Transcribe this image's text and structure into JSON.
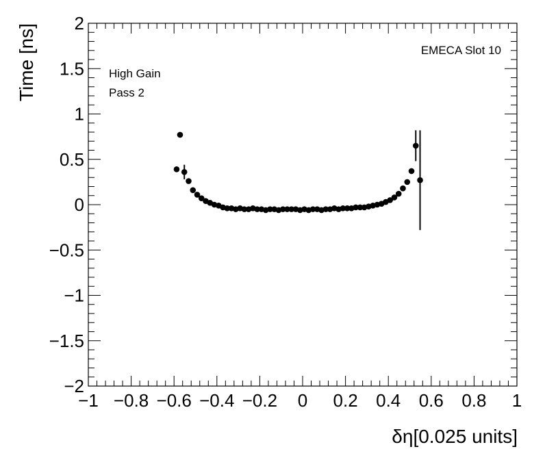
{
  "chart_data": {
    "type": "scatter",
    "title": "",
    "xlabel": "δη[0.025 units]",
    "ylabel": "Time [ns]",
    "xlim": [
      -1,
      1
    ],
    "ylim": [
      -2,
      2
    ],
    "x_ticks": [
      "−1",
      "−0.8",
      "−0.6",
      "−0.4",
      "−0.2",
      "0",
      "0.2",
      "0.4",
      "0.6",
      "0.8",
      "1"
    ],
    "y_ticks": [
      "2",
      "1.5",
      "1",
      "0.5",
      "0",
      "−0.5",
      "−1",
      "−1.5",
      "−2"
    ],
    "grid": false,
    "annotations": {
      "slot": "EMECA Slot 10",
      "gain": "High Gain",
      "pass": "Pass 2"
    },
    "marker_color": "#000000",
    "series": [
      {
        "name": "",
        "points": [
          {
            "x": -0.588,
            "y": 0.39,
            "err": 0.01
          },
          {
            "x": -0.572,
            "y": 0.77,
            "err": 0.01
          },
          {
            "x": -0.552,
            "y": 0.36,
            "err": 0.08
          },
          {
            "x": -0.532,
            "y": 0.26,
            "err": 0.02
          },
          {
            "x": -0.512,
            "y": 0.16,
            "err": 0.01
          },
          {
            "x": -0.492,
            "y": 0.11,
            "err": 0.01
          },
          {
            "x": -0.472,
            "y": 0.07,
            "err": 0.01
          },
          {
            "x": -0.452,
            "y": 0.04,
            "err": 0.01
          },
          {
            "x": -0.432,
            "y": 0.02,
            "err": 0.01
          },
          {
            "x": -0.412,
            "y": 0.0,
            "err": 0.01
          },
          {
            "x": -0.392,
            "y": -0.01,
            "err": 0.01
          },
          {
            "x": -0.372,
            "y": -0.03,
            "err": 0.01
          },
          {
            "x": -0.352,
            "y": -0.04,
            "err": 0.01
          },
          {
            "x": -0.332,
            "y": -0.04,
            "err": 0.01
          },
          {
            "x": -0.312,
            "y": -0.05,
            "err": 0.01
          },
          {
            "x": -0.292,
            "y": -0.04,
            "err": 0.01
          },
          {
            "x": -0.272,
            "y": -0.05,
            "err": 0.01
          },
          {
            "x": -0.252,
            "y": -0.05,
            "err": 0.01
          },
          {
            "x": -0.232,
            "y": -0.04,
            "err": 0.01
          },
          {
            "x": -0.212,
            "y": -0.05,
            "err": 0.01
          },
          {
            "x": -0.192,
            "y": -0.05,
            "err": 0.01
          },
          {
            "x": -0.172,
            "y": -0.06,
            "err": 0.01
          },
          {
            "x": -0.152,
            "y": -0.05,
            "err": 0.01
          },
          {
            "x": -0.132,
            "y": -0.05,
            "err": 0.01
          },
          {
            "x": -0.112,
            "y": -0.06,
            "err": 0.01
          },
          {
            "x": -0.092,
            "y": -0.05,
            "err": 0.01
          },
          {
            "x": -0.072,
            "y": -0.05,
            "err": 0.01
          },
          {
            "x": -0.052,
            "y": -0.05,
            "err": 0.01
          },
          {
            "x": -0.032,
            "y": -0.05,
            "err": 0.01
          },
          {
            "x": -0.012,
            "y": -0.06,
            "err": 0.01
          },
          {
            "x": 0.008,
            "y": -0.05,
            "err": 0.01
          },
          {
            "x": 0.028,
            "y": -0.06,
            "err": 0.01
          },
          {
            "x": 0.048,
            "y": -0.05,
            "err": 0.01
          },
          {
            "x": 0.068,
            "y": -0.05,
            "err": 0.01
          },
          {
            "x": 0.088,
            "y": -0.06,
            "err": 0.01
          },
          {
            "x": 0.108,
            "y": -0.05,
            "err": 0.01
          },
          {
            "x": 0.128,
            "y": -0.05,
            "err": 0.01
          },
          {
            "x": 0.148,
            "y": -0.04,
            "err": 0.01
          },
          {
            "x": 0.168,
            "y": -0.05,
            "err": 0.01
          },
          {
            "x": 0.188,
            "y": -0.04,
            "err": 0.01
          },
          {
            "x": 0.208,
            "y": -0.04,
            "err": 0.01
          },
          {
            "x": 0.228,
            "y": -0.04,
            "err": 0.01
          },
          {
            "x": 0.248,
            "y": -0.03,
            "err": 0.01
          },
          {
            "x": 0.268,
            "y": -0.03,
            "err": 0.01
          },
          {
            "x": 0.288,
            "y": -0.03,
            "err": 0.01
          },
          {
            "x": 0.308,
            "y": -0.02,
            "err": 0.01
          },
          {
            "x": 0.328,
            "y": -0.01,
            "err": 0.01
          },
          {
            "x": 0.348,
            "y": 0.0,
            "err": 0.01
          },
          {
            "x": 0.368,
            "y": 0.01,
            "err": 0.01
          },
          {
            "x": 0.388,
            "y": 0.03,
            "err": 0.01
          },
          {
            "x": 0.408,
            "y": 0.05,
            "err": 0.01
          },
          {
            "x": 0.428,
            "y": 0.08,
            "err": 0.01
          },
          {
            "x": 0.448,
            "y": 0.12,
            "err": 0.01
          },
          {
            "x": 0.468,
            "y": 0.18,
            "err": 0.01
          },
          {
            "x": 0.488,
            "y": 0.25,
            "err": 0.02
          },
          {
            "x": 0.508,
            "y": 0.37,
            "err": 0.03
          },
          {
            "x": 0.528,
            "y": 0.65,
            "err": 0.17
          },
          {
            "x": 0.548,
            "y": 0.27,
            "err": 0.55
          }
        ]
      }
    ]
  }
}
